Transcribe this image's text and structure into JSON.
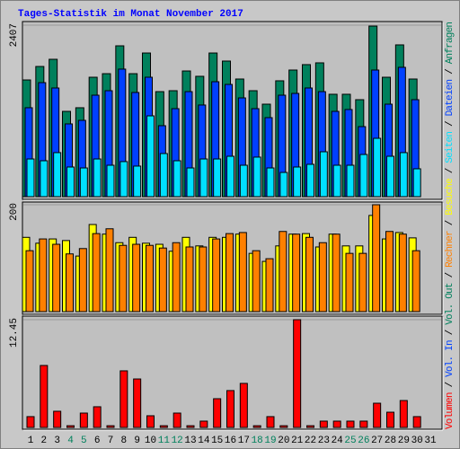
{
  "chart_data": [
    {
      "type": "bar",
      "title": "Tages-Statistik im Monat November 2017",
      "legend_separator": " / ",
      "ylim": [
        0,
        2407
      ],
      "yticks": [
        2407
      ],
      "series": [
        {
          "name": "Anfragen",
          "color": "#00805c",
          "values": [
            1638,
            1827,
            1928,
            1197,
            1248,
            1676,
            1726,
            2117,
            1726,
            2016,
            1474,
            1487,
            1764,
            1689,
            2016,
            1903,
            1651,
            1487,
            1298,
            1626,
            1777,
            1853,
            1878,
            1437,
            1437,
            1361,
            2394,
            1676,
            2130,
            1651,
            null
          ]
        },
        {
          "name": "Dateien",
          "color": "#0040ff",
          "values": [
            1248,
            1600,
            1525,
            1021,
            1071,
            1424,
            1487,
            1790,
            1462,
            1676,
            996,
            1235,
            1474,
            1286,
            1613,
            1575,
            1386,
            1235,
            1109,
            1424,
            1449,
            1525,
            1474,
            1197,
            1223,
            983,
            1777,
            1298,
            1815,
            1361,
            null
          ]
        },
        {
          "name": "Seiten",
          "color": "#00e0ff",
          "values": [
            529,
            504,
            618,
            416,
            403,
            529,
            441,
            492,
            429,
            1134,
            605,
            504,
            403,
            529,
            529,
            567,
            441,
            555,
            403,
            340,
            416,
            454,
            630,
            441,
            441,
            592,
            819,
            567,
            618,
            391,
            null
          ]
        }
      ]
    },
    {
      "type": "bar",
      "ylim": [
        0,
        200
      ],
      "yticks": [
        200
      ],
      "series": [
        {
          "name": "Besuche",
          "color": "#ffff00",
          "values": [
            139,
            128,
            136,
            133,
            104,
            163,
            145,
            129,
            139,
            128,
            126,
            113,
            139,
            123,
            139,
            139,
            145,
            109,
            94,
            123,
            145,
            146,
            121,
            145,
            123,
            123,
            180,
            136,
            148,
            138,
            null
          ]
        },
        {
          "name": "Rechner",
          "color": "#ff8000",
          "values": [
            114,
            136,
            126,
            108,
            118,
            146,
            155,
            124,
            126,
            124,
            119,
            129,
            121,
            121,
            136,
            146,
            148,
            114,
            99,
            150,
            145,
            139,
            129,
            145,
            109,
            109,
            200,
            150,
            145,
            114,
            null
          ]
        }
      ]
    },
    {
      "type": "bar",
      "ylim": [
        0,
        12.45
      ],
      "yticks": [
        12.45
      ],
      "categories": [
        "1",
        "2",
        "3",
        "4",
        "5",
        "6",
        "7",
        "8",
        "9",
        "10",
        "11",
        "12",
        "13",
        "14",
        "15",
        "16",
        "17",
        "18",
        "19",
        "20",
        "21",
        "22",
        "23",
        "24",
        "25",
        "26",
        "27",
        "28",
        "29",
        "30",
        "31"
      ],
      "label_colors": [
        "#000000",
        "#000000",
        "#000000",
        "#00805c",
        "#00805c",
        "#000000",
        "#000000",
        "#000000",
        "#000000",
        "#000000",
        "#00805c",
        "#00805c",
        "#000000",
        "#000000",
        "#000000",
        "#000000",
        "#000000",
        "#00805c",
        "#00805c",
        "#000000",
        "#000000",
        "#000000",
        "#000000",
        "#000000",
        "#00805c",
        "#00805c",
        "#000000",
        "#000000",
        "#000000",
        "#000000",
        "#000000"
      ],
      "series": [
        {
          "name": "Vol. Out",
          "color": "#00805c"
        },
        {
          "name": "Vol. In",
          "color": "#0040ff"
        },
        {
          "name": "Volumen",
          "color": "#ff0000",
          "values": [
            1.25,
            7.16,
            1.87,
            0.2,
            1.66,
            2.39,
            0.2,
            6.54,
            5.6,
            1.35,
            0.2,
            1.66,
            0.2,
            0.73,
            3.32,
            4.26,
            5.09,
            0.2,
            1.25,
            0.2,
            12.45,
            0.2,
            0.73,
            0.73,
            0.73,
            0.73,
            2.8,
            1.76,
            3.11,
            1.25,
            null
          ]
        }
      ]
    }
  ]
}
